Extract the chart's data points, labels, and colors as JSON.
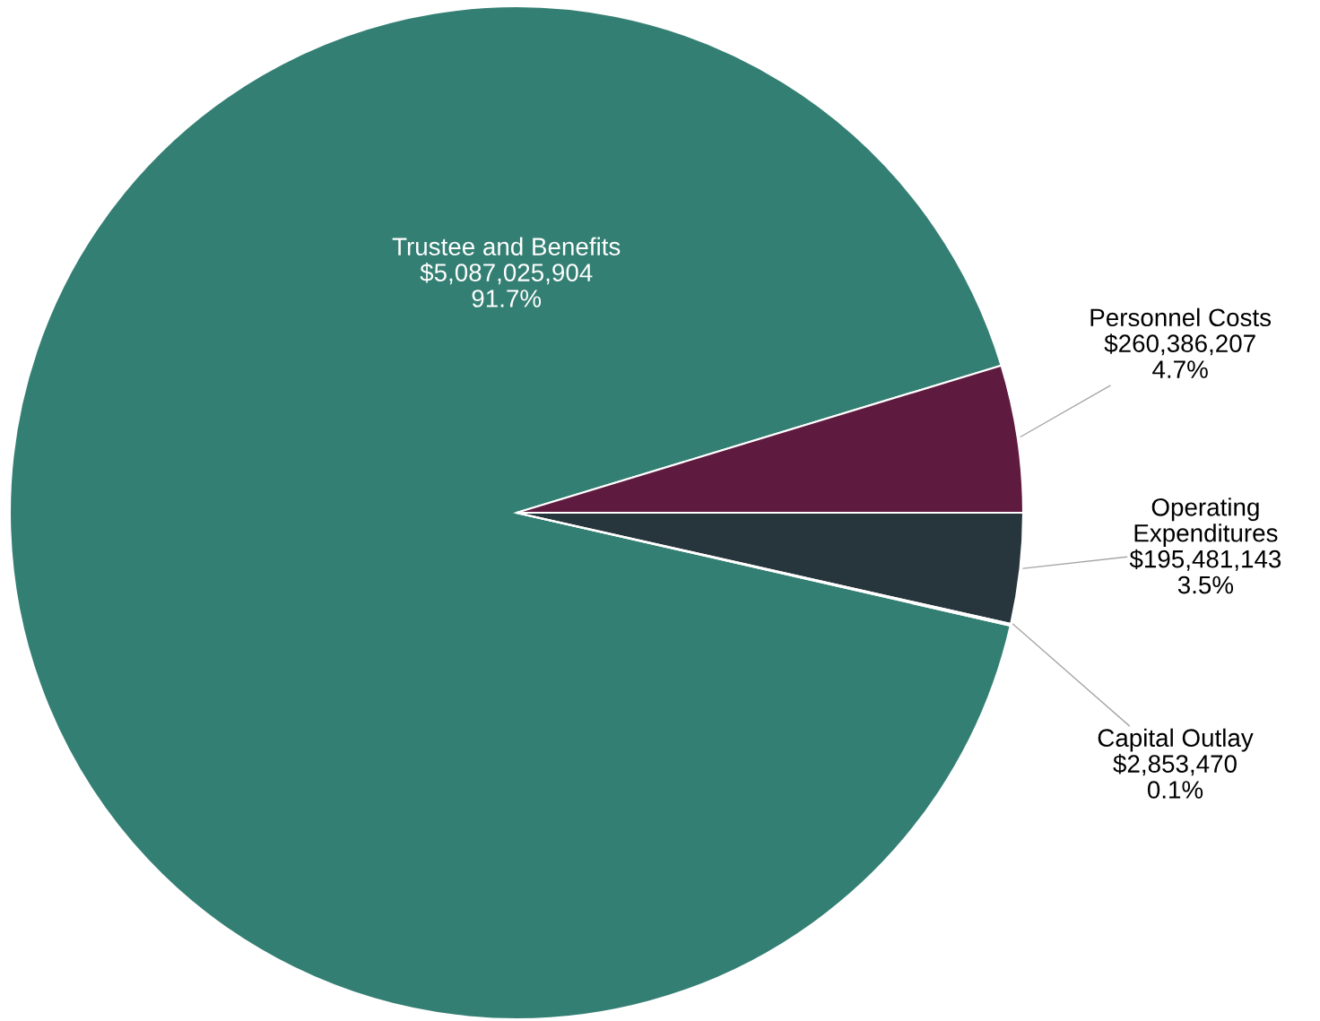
{
  "chart_data": {
    "type": "pie",
    "categories": [
      "Trustee and Benefits",
      "Personnel Costs",
      "Operating\nExpenditures",
      "Capital Outlay"
    ],
    "values": [
      5087025904,
      260386207,
      195481143,
      2853470
    ],
    "colors": [
      "#347f73",
      "#5f1a40",
      "#27353d",
      "#8c8c8c"
    ],
    "value_labels": [
      "$5,087,025,904\n91.7%",
      "$260,386,207\n4.7%",
      "$195,481,143\n3.5%",
      "$2,853,470\n0.1%"
    ],
    "legend": false
  }
}
